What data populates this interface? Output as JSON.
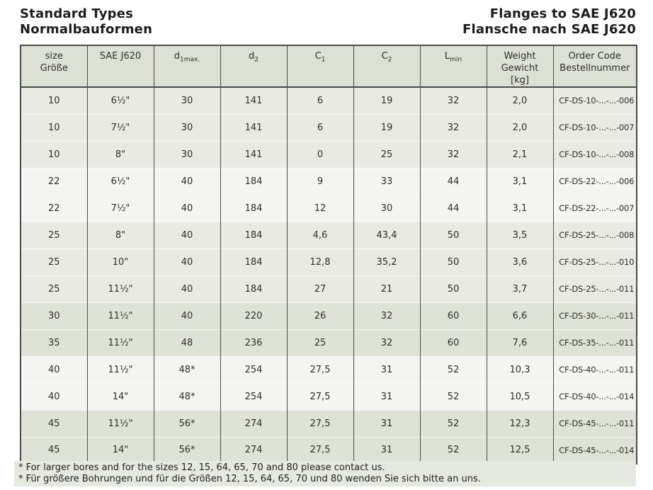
{
  "page": {
    "title_left_line1": "Standard Types",
    "title_left_line2": "Normalbauformen",
    "title_right_line1": "Flanges to SAE J620",
    "title_right_line2": "Flansche nach SAE J620"
  },
  "table": {
    "columns": [
      {
        "line1": "size",
        "line2": "Größe"
      },
      {
        "line1": "SAE J620"
      },
      {
        "base": "d",
        "sub": "1max."
      },
      {
        "base": "d",
        "sub": "2"
      },
      {
        "base": "C",
        "sub": "1"
      },
      {
        "base": "C",
        "sub": "2"
      },
      {
        "base": "L",
        "sub": "min"
      },
      {
        "line1": "Weight",
        "line2": "Gewicht",
        "line3": "[kg]"
      },
      {
        "line1": "Order Code",
        "line2": "Bestellnummer"
      }
    ],
    "rows": [
      {
        "size": "10",
        "sae_j620": "6½\"",
        "d1max": "30",
        "d2": "141",
        "c1": "6",
        "c2": "19",
        "lmin": "32",
        "weight": "2,0",
        "order_code": "CF-DS-10-...-...-006",
        "shade": "mid"
      },
      {
        "size": "10",
        "sae_j620": "7½\"",
        "d1max": "30",
        "d2": "141",
        "c1": "6",
        "c2": "19",
        "lmin": "32",
        "weight": "2,0",
        "order_code": "CF-DS-10-...-...-007",
        "shade": "mid"
      },
      {
        "size": "10",
        "sae_j620": "8\"",
        "d1max": "30",
        "d2": "141",
        "c1": "0",
        "c2": "25",
        "lmin": "32",
        "weight": "2,1",
        "order_code": "CF-DS-10-...-...-008",
        "shade": "mid"
      },
      {
        "size": "22",
        "sae_j620": "6½\"",
        "d1max": "40",
        "d2": "184",
        "c1": "9",
        "c2": "33",
        "lmin": "44",
        "weight": "3,1",
        "order_code": "CF-DS-22-...-...-006",
        "shade": "light"
      },
      {
        "size": "22",
        "sae_j620": "7½\"",
        "d1max": "40",
        "d2": "184",
        "c1": "12",
        "c2": "30",
        "lmin": "44",
        "weight": "3,1",
        "order_code": "CF-DS-22-...-...-007",
        "shade": "light"
      },
      {
        "size": "25",
        "sae_j620": "8\"",
        "d1max": "40",
        "d2": "184",
        "c1": "4,6",
        "c2": "43,4",
        "lmin": "50",
        "weight": "3,5",
        "order_code": "CF-DS-25-...-...-008",
        "shade": "mid"
      },
      {
        "size": "25",
        "sae_j620": "10\"",
        "d1max": "40",
        "d2": "184",
        "c1": "12,8",
        "c2": "35,2",
        "lmin": "50",
        "weight": "3,6",
        "order_code": "CF-DS-25-...-...-010",
        "shade": "mid"
      },
      {
        "size": "25",
        "sae_j620": "11½\"",
        "d1max": "40",
        "d2": "184",
        "c1": "27",
        "c2": "21",
        "lmin": "50",
        "weight": "3,7",
        "order_code": "CF-DS-25-...-...-011",
        "shade": "mid"
      },
      {
        "size": "30",
        "sae_j620": "11½\"",
        "d1max": "40",
        "d2": "220",
        "c1": "26",
        "c2": "32",
        "lmin": "60",
        "weight": "6,6",
        "order_code": "CF-DS-30-...-...-011",
        "shade": "dark"
      },
      {
        "size": "35",
        "sae_j620": "11½\"",
        "d1max": "48",
        "d2": "236",
        "c1": "25",
        "c2": "32",
        "lmin": "60",
        "weight": "7,6",
        "order_code": "CF-DS-35-...-...-011",
        "shade": "dark"
      },
      {
        "size": "40",
        "sae_j620": "11½\"",
        "d1max": "48*",
        "d2": "254",
        "c1": "27,5",
        "c2": "31",
        "lmin": "52",
        "weight": "10,3",
        "order_code": "CF-DS-40-...-...-011",
        "shade": "light"
      },
      {
        "size": "40",
        "sae_j620": "14\"",
        "d1max": "48*",
        "d2": "254",
        "c1": "27,5",
        "c2": "31",
        "lmin": "52",
        "weight": "10,5",
        "order_code": "CF-DS-40-...-...-014",
        "shade": "light"
      },
      {
        "size": "45",
        "sae_j620": "11½\"",
        "d1max": "56*",
        "d2": "274",
        "c1": "27,5",
        "c2": "31",
        "lmin": "52",
        "weight": "12,3",
        "order_code": "CF-DS-45-...-...-011",
        "shade": "dark"
      },
      {
        "size": "45",
        "sae_j620": "14\"",
        "d1max": "56*",
        "d2": "274",
        "c1": "27,5",
        "c2": "31",
        "lmin": "52",
        "weight": "12,5",
        "order_code": "CF-DS-45-...-...-014",
        "shade": "dark"
      }
    ]
  },
  "footnotes": {
    "line_en": "* For larger bores and for the sizes 12, 15, 64, 65, 70 and 80 please contact us.",
    "line_de": "* Für größere Bohrungen und für die Größen 12, 15, 64, 65, 70 und 80 wenden Sie sich bitte an uns."
  },
  "colors": {
    "header_bg": "#dde1d5",
    "row_mid": "#e9ebe3",
    "row_light": "#f4f5f1",
    "row_dark": "#dfe3d7",
    "footnote_bg": "#e6e9e0",
    "border": "#4a4a4a",
    "text": "#2d2d2d"
  }
}
